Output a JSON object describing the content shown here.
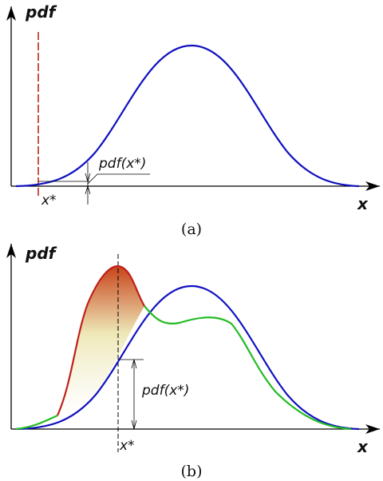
{
  "panels": [
    {
      "y_label": "pdf",
      "x_label": "x",
      "point_label": "x*",
      "annotation": "pdf(x*)",
      "caption": "(a)"
    },
    {
      "y_label": "pdf",
      "x_label": "x",
      "point_label": "x*",
      "annotation": "pdf(x*)",
      "caption": "(b)"
    }
  ]
}
